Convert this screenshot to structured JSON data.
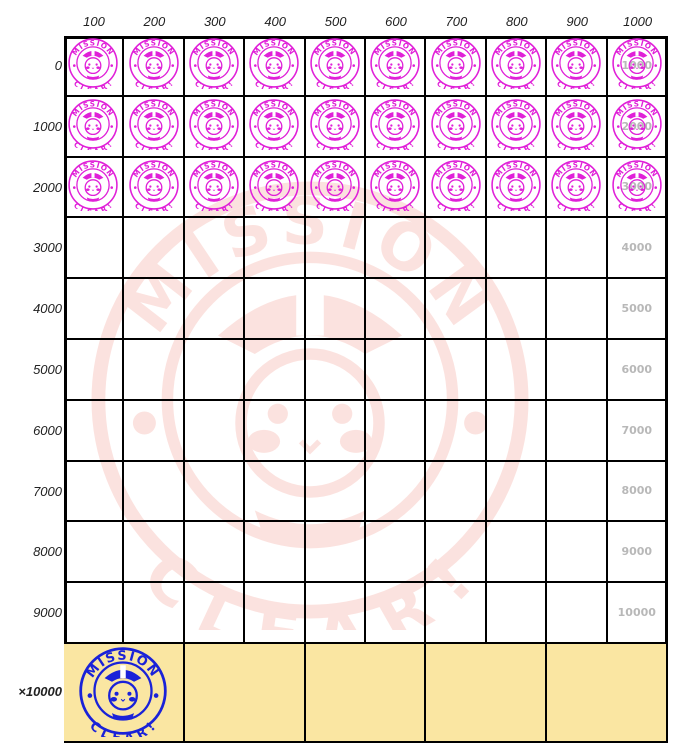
{
  "column_headers": [
    "100",
    "200",
    "300",
    "400",
    "500",
    "600",
    "700",
    "800",
    "900",
    "1000"
  ],
  "row_labels": [
    "0",
    "1000",
    "2000",
    "3000",
    "4000",
    "5000",
    "6000",
    "7000",
    "8000",
    "9000"
  ],
  "bottom_row_label": "×10000",
  "right_column_values": [
    "1000",
    "2000",
    "3000",
    "4000",
    "5000",
    "6000",
    "7000",
    "8000",
    "9000",
    "10000"
  ],
  "stamped_rows": 3,
  "bottom_stamped_cells": 1,
  "bottom_cells": 5,
  "stamp": {
    "top_text": "MISSION",
    "bottom_text": "CLEAR!"
  },
  "colors": {
    "stamp_pink": "#e020d8",
    "stamp_blue": "#1a22d8",
    "watermark": "#f08070",
    "gold_cell": "#fae6a2",
    "grid": "#000000"
  }
}
